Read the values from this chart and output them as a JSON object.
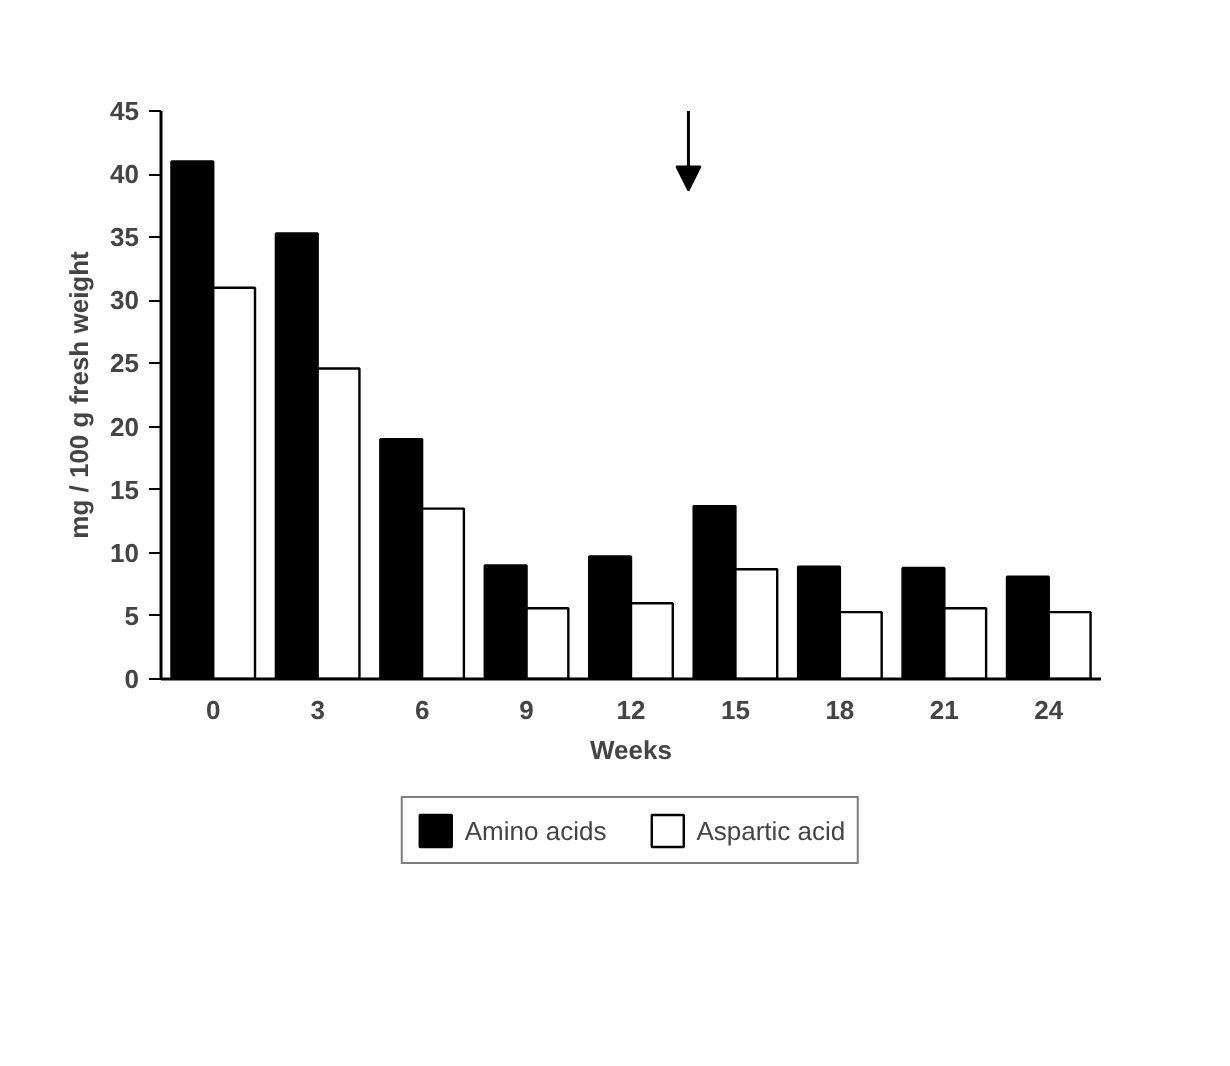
{
  "chart_data": {
    "type": "bar",
    "xlabel": "Weeks",
    "ylabel": "mg / 100 g fresh weight",
    "categories": [
      "0",
      "3",
      "6",
      "9",
      "12",
      "15",
      "18",
      "21",
      "24"
    ],
    "series": [
      {
        "name": "Amino acids",
        "color": "#000000",
        "values": [
          41,
          35.3,
          19,
          9,
          9.7,
          13.7,
          8.9,
          8.8,
          8.1
        ]
      },
      {
        "name": "Aspartic acid",
        "color": "#ffffff",
        "values": [
          31,
          24.6,
          13.5,
          5.6,
          6,
          8.7,
          5.3,
          5.6,
          5.3
        ]
      }
    ],
    "ylim": [
      0,
      45
    ],
    "yticks": [
      0,
      5,
      10,
      15,
      20,
      25,
      30,
      35,
      40,
      45
    ],
    "grid": false,
    "legend": "bottom"
  }
}
